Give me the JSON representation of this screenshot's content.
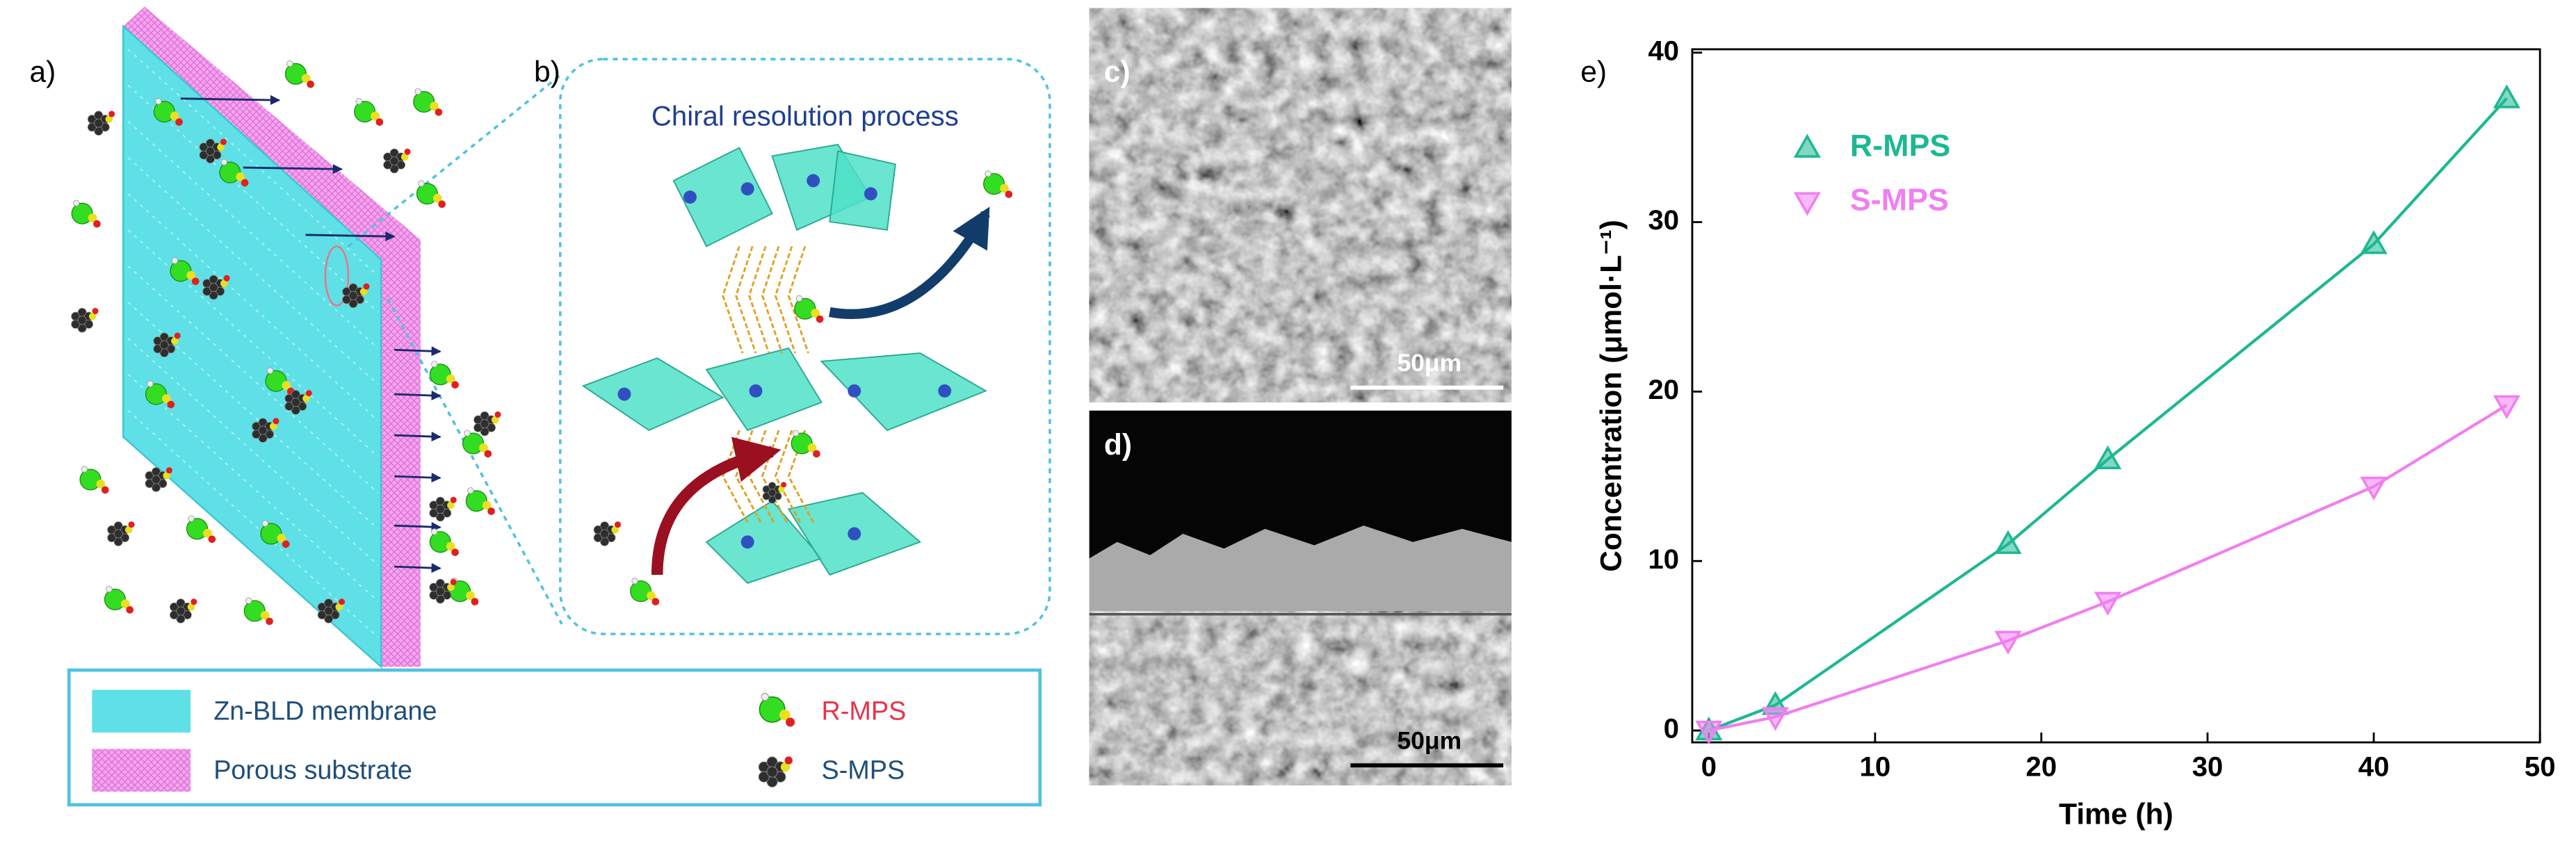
{
  "panels": {
    "a": {
      "label": "a)"
    },
    "b": {
      "label": "b)",
      "title": "Chiral resolution process"
    },
    "c": {
      "label": "c)",
      "scale_bar": "50μm"
    },
    "d": {
      "label": "d)",
      "scale_bar": "50μm"
    },
    "e": {
      "label": "e)"
    }
  },
  "legend": {
    "membrane": "Zn-BLD membrane",
    "substrate": "Porous substrate",
    "r_mps": "R-MPS",
    "s_mps": "S-MPS"
  },
  "chart_data": {
    "type": "line",
    "xlabel": "Time (h)",
    "ylabel": "Concentration (μmol·L⁻¹)",
    "x": [
      0,
      4,
      18,
      24,
      40,
      48
    ],
    "series": [
      {
        "name": "R-MPS",
        "color": "#1db893",
        "marker": "triangle-up",
        "values": [
          0,
          1.5,
          11,
          16,
          28.7,
          37.3
        ]
      },
      {
        "name": "S-MPS",
        "color": "#f07ff0",
        "marker": "triangle-down",
        "values": [
          0,
          0.8,
          5.3,
          7.6,
          14.4,
          19.2
        ]
      }
    ],
    "xlim": [
      -1,
      50
    ],
    "ylim": [
      -0.7,
      40.2
    ],
    "xticks": [
      0,
      10,
      20,
      30,
      40,
      50
    ],
    "yticks": [
      0,
      10,
      20,
      30,
      40
    ]
  }
}
